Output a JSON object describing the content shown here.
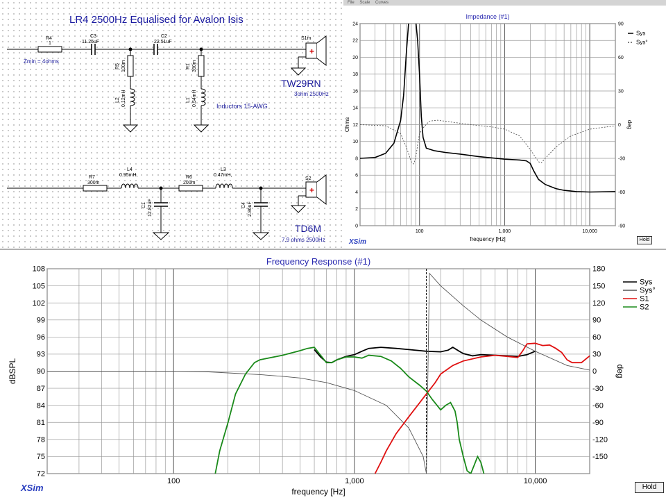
{
  "schematic": {
    "title": "LR4 2500Hz  Equalised for  Avalon Isis",
    "zmin": "Zmin = 4ohms",
    "inductor_note": "Inductors 15-AWG",
    "components": {
      "r4_name": "R4",
      "r4_value": "1",
      "c3_name": "C3",
      "c3_value": "11.25uF",
      "c2_name": "C2",
      "c2_value": "22.51uF",
      "r5_name": "R5",
      "r5_value": "100m",
      "l2_name": "L2",
      "l2_value": "0.12mH",
      "r1_name": "R1",
      "r1_value": "390m",
      "l1_name": "L1",
      "l1_value": "0.54mH",
      "r7_name": "R7",
      "r7_value": "300m",
      "l4_name": "L4",
      "l4_value": "0.95mH,",
      "r6_name": "R6",
      "r6_value": "200m",
      "l3_name": "L3",
      "l3_value": "0.47mH,",
      "c1_name": "C1",
      "c1_value": "12.82uF",
      "c4_name": "C4",
      "c4_value": "2.86uF"
    },
    "speakers": {
      "s1_name": "S1m",
      "s1_model": "TW29RN",
      "s1_spec": "3ohm 2500Hz",
      "s2_name": "S2",
      "s2_model": "TD6M",
      "s2_spec": "7.9 ohms 2500Hz"
    }
  },
  "impedance": {
    "toolbar": [
      "File",
      "Scale",
      "Curves"
    ],
    "hold_label": "Hold",
    "logo": "XSim",
    "chart_data": {
      "type": "line",
      "title": "Impedance (#1)",
      "xlabel": "frequency [Hz]",
      "ylabel": "Ohms",
      "y2label": "deg",
      "x_scale": "log",
      "xlim": [
        20,
        20000
      ],
      "ylim": [
        0,
        24
      ],
      "y2lim": [
        -90,
        90
      ],
      "x_ticks": [
        100,
        1000,
        10000
      ],
      "x_tick_labels": [
        "100",
        "1,000",
        "10,000"
      ],
      "y_ticks": [
        0,
        2,
        4,
        6,
        8,
        10,
        12,
        14,
        16,
        18,
        20,
        22,
        24
      ],
      "y_tick_labels": [
        "0",
        "2",
        "4",
        "6",
        "8",
        "10",
        "12",
        "14",
        "16",
        "18",
        "20",
        "22",
        "24"
      ],
      "y2_ticks": [
        -90,
        -60,
        -30,
        0,
        30,
        60,
        90
      ],
      "y2_tick_labels": [
        "-90",
        "-60",
        "-30",
        "0",
        "30",
        "60",
        "90"
      ],
      "legend": [
        "Sys",
        "Sys°"
      ],
      "legend_position": "top-right",
      "series": [
        {
          "name": "Sys",
          "axis": "left",
          "color": "#000000",
          "dashed": false,
          "x": [
            20,
            30,
            40,
            50,
            60,
            65,
            70,
            75,
            80,
            85,
            90,
            95,
            100,
            105,
            110,
            120,
            150,
            200,
            300,
            500,
            1000,
            1500,
            1800,
            2000,
            2200,
            2500,
            3000,
            4000,
            5000,
            7000,
            10000,
            20000
          ],
          "y": [
            8.0,
            8.1,
            8.6,
            9.8,
            12.5,
            15.5,
            20.5,
            24.5,
            24.5,
            24.5,
            24.5,
            22.0,
            18.0,
            13.0,
            10.5,
            9.2,
            8.9,
            8.7,
            8.5,
            8.2,
            7.9,
            7.8,
            7.7,
            7.4,
            6.5,
            5.5,
            4.9,
            4.4,
            4.2,
            4.05,
            4.0,
            4.05
          ]
        },
        {
          "name": "Sys°",
          "axis": "right",
          "color": "#555555",
          "dashed": true,
          "x": [
            20,
            40,
            60,
            70,
            80,
            85,
            90,
            95,
            100,
            110,
            130,
            160,
            200,
            400,
            700,
            1000,
            1500,
            2000,
            2500,
            2700,
            3000,
            4000,
            6000,
            10000,
            20000
          ],
          "y": [
            0,
            -1,
            -8,
            -20,
            -33,
            -35,
            -30,
            -18,
            -8,
            -3,
            3,
            4,
            3,
            0,
            -2,
            -4,
            -10,
            -22,
            -33,
            -34,
            -30,
            -20,
            -10,
            -4,
            -1
          ]
        }
      ]
    }
  },
  "freqresp": {
    "hold_label": "Hold",
    "logo": "XSim",
    "chart_data": {
      "type": "line",
      "title": "Frequency Response (#1)",
      "xlabel": "frequency [Hz]",
      "ylabel": "dBSPL",
      "y2label": "deg",
      "x_scale": "log",
      "xlim": [
        20,
        20000
      ],
      "ylim": [
        72,
        108
      ],
      "y2lim": [
        -180,
        180
      ],
      "x_ticks": [
        100,
        1000,
        10000
      ],
      "x_tick_labels": [
        "100",
        "1,000",
        "10,000"
      ],
      "y_ticks": [
        72,
        75,
        78,
        81,
        84,
        87,
        90,
        93,
        96,
        99,
        102,
        105,
        108
      ],
      "y_tick_labels": [
        "72",
        "75",
        "78",
        "81",
        "84",
        "87",
        "90",
        "93",
        "96",
        "99",
        "102",
        "105",
        "108"
      ],
      "y2_ticks": [
        -150,
        -120,
        -90,
        -60,
        -30,
        0,
        30,
        60,
        90,
        120,
        150,
        180
      ],
      "y2_tick_labels": [
        "-150",
        "-120",
        "-90",
        "-60",
        "-30",
        "0",
        "30",
        "60",
        "90",
        "120",
        "150",
        "180"
      ],
      "marker_x": 2500,
      "legend": [
        "Sys",
        "Sys°",
        "S1",
        "S2"
      ],
      "legend_position": "top-right",
      "series": [
        {
          "name": "Sys",
          "axis": "left",
          "color": "#000000",
          "dashed": false,
          "x": [
            600,
            650,
            700,
            750,
            800,
            900,
            1000,
            1100,
            1200,
            1400,
            1700,
            2000,
            2500,
            3000,
            3300,
            3500,
            3800,
            4000,
            4500,
            5000,
            6000,
            7000,
            8000,
            9000,
            10000
          ],
          "y": [
            93.8,
            92.5,
            91.6,
            91.5,
            92.0,
            92.6,
            92.9,
            93.5,
            94.0,
            94.2,
            94.0,
            93.8,
            93.5,
            93.4,
            93.7,
            94.2,
            93.5,
            93.1,
            92.7,
            92.9,
            92.8,
            92.7,
            92.6,
            92.9,
            93.5
          ]
        },
        {
          "name": "Sys°",
          "axis": "right",
          "color": "#555555",
          "dashed": false,
          "x": [
            20,
            60,
            100,
            150,
            200,
            300,
            400,
            500,
            700,
            1000,
            1500,
            2000,
            2400,
            2500,
            2600,
            3000,
            4000,
            5000,
            7000,
            10000,
            15000,
            20000
          ],
          "y": [
            0,
            0,
            0,
            -1,
            -3,
            -6,
            -9,
            -12,
            -20,
            -34,
            -60,
            -100,
            -150,
            -180,
            172,
            150,
            115,
            90,
            60,
            35,
            10,
            2
          ]
        },
        {
          "name": "S1",
          "axis": "left",
          "color": "#e01010",
          "dashed": false,
          "x": [
            1300,
            1400,
            1500,
            1700,
            2000,
            2300,
            2500,
            2800,
            3000,
            3500,
            4000,
            5000,
            6000,
            7000,
            8000,
            8500,
            9000,
            10000,
            11000,
            12000,
            13000,
            14000,
            15000,
            16000,
            18000,
            20000
          ],
          "y": [
            72.0,
            74.0,
            76.0,
            79.0,
            82.0,
            84.5,
            86.0,
            88.0,
            89.5,
            91.0,
            91.8,
            92.5,
            92.8,
            92.6,
            92.4,
            93.5,
            94.8,
            94.9,
            94.5,
            94.6,
            94.0,
            93.3,
            92.0,
            91.5,
            91.5,
            92.7
          ]
        },
        {
          "name": "S2",
          "axis": "left",
          "color": "#1a8a1a",
          "dashed": false,
          "x": [
            170,
            180,
            200,
            220,
            250,
            280,
            300,
            400,
            500,
            550,
            600,
            650,
            700,
            750,
            800,
            900,
            1000,
            1100,
            1200,
            1400,
            1600,
            1800,
            2000,
            2300,
            2500,
            2700,
            3000,
            3200,
            3400,
            3600,
            3700,
            3800,
            4000,
            4200,
            4400,
            4600,
            4800,
            5000,
            5200
          ],
          "y": [
            72.0,
            76.0,
            81.0,
            86.0,
            89.5,
            91.5,
            92.0,
            92.8,
            93.6,
            94.0,
            94.2,
            92.8,
            91.5,
            91.5,
            92.0,
            92.5,
            92.5,
            92.3,
            92.8,
            92.6,
            91.8,
            90.5,
            89.0,
            87.5,
            86.5,
            85.0,
            83.2,
            84.0,
            84.5,
            83.0,
            81.0,
            78.0,
            75.0,
            72.5,
            72.0,
            73.5,
            75.0,
            74.0,
            72.0
          ]
        }
      ]
    }
  }
}
